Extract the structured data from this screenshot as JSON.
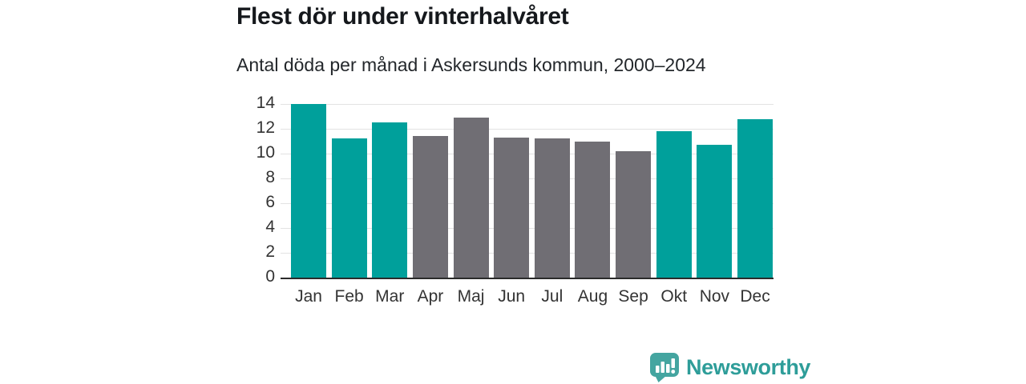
{
  "header": {
    "title": "Flest dör under vinterhalvåret",
    "subtitle": "Antal döda per månad i Askersunds kommun, 2000–2024"
  },
  "chart_data": {
    "type": "bar",
    "title": "Flest dör under vinterhalvåret",
    "subtitle": "Antal döda per månad i Askersunds kommun, 2000–2024",
    "categories": [
      "Jan",
      "Feb",
      "Mar",
      "Apr",
      "Maj",
      "Jun",
      "Jul",
      "Aug",
      "Sep",
      "Okt",
      "Nov",
      "Dec"
    ],
    "values": [
      14.0,
      11.2,
      12.5,
      11.4,
      12.9,
      11.3,
      11.2,
      11.0,
      10.2,
      11.8,
      10.7,
      12.8
    ],
    "highlighted": [
      true,
      true,
      true,
      false,
      false,
      false,
      false,
      false,
      false,
      true,
      true,
      true
    ],
    "xlabel": "",
    "ylabel": "",
    "ylim": [
      0,
      14
    ],
    "yticks": [
      0,
      2,
      4,
      6,
      8,
      10,
      12,
      14
    ],
    "grid": true,
    "legend": "none",
    "colors": {
      "highlight": "#00a09b",
      "base": "#706e74"
    }
  },
  "footer": {
    "brand": "Newsworthy"
  },
  "theme": {
    "background": "#ffffff",
    "accent_teal": "#00a09b",
    "neutral_gray": "#706e74",
    "logo_teal": "#44a5a0",
    "logo_text_teal": "#2e9d99",
    "grid_color": "#e3e3e3",
    "axis_color": "#2b2b2b",
    "text_dark": "#15181c",
    "text_axis": "#333333"
  }
}
